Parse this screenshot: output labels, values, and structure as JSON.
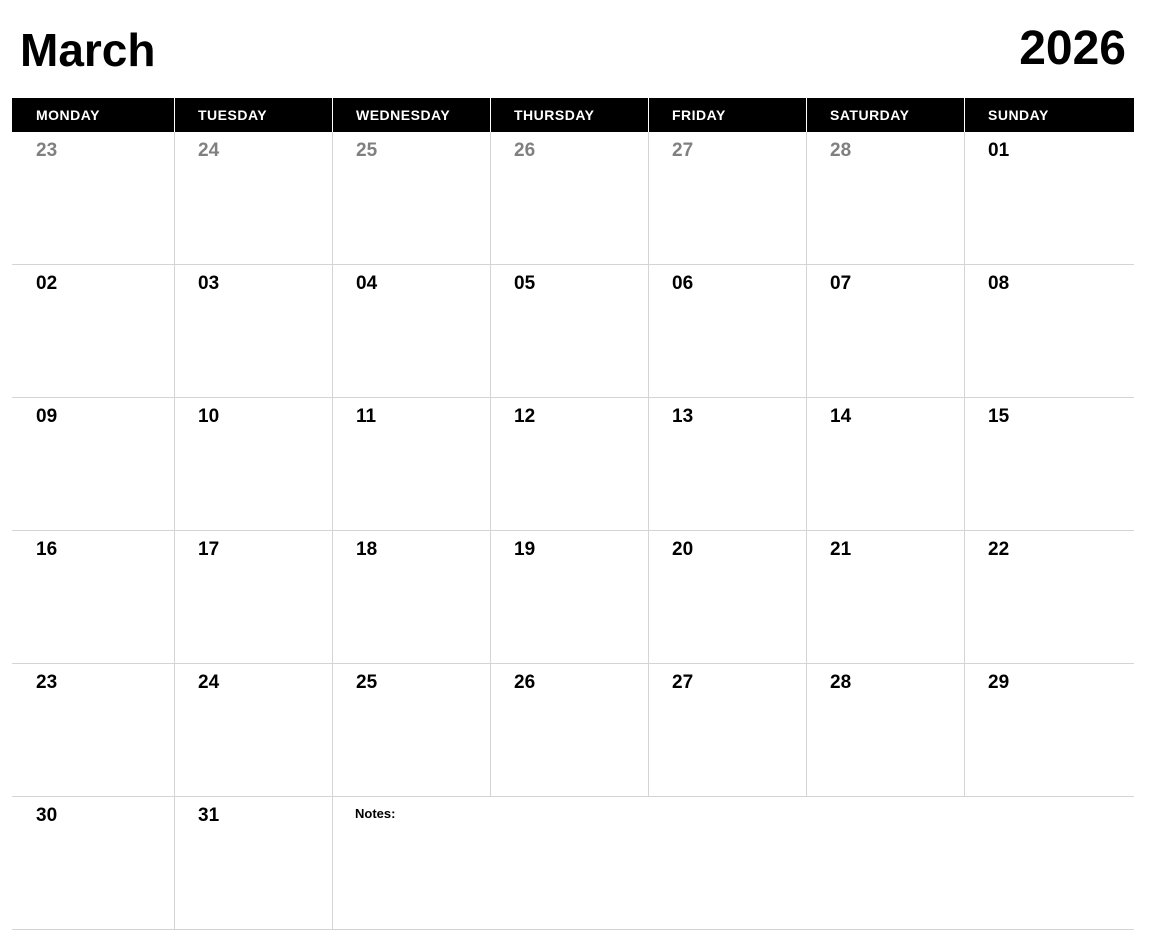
{
  "header": {
    "month": "March",
    "year": "2026"
  },
  "weekdays": [
    "MONDAY",
    "TUESDAY",
    "WEDNESDAY",
    "THURSDAY",
    "FRIDAY",
    "SATURDAY",
    "SUNDAY"
  ],
  "weeks": [
    [
      {
        "label": "23",
        "muted": true
      },
      {
        "label": "24",
        "muted": true
      },
      {
        "label": "25",
        "muted": true
      },
      {
        "label": "26",
        "muted": true
      },
      {
        "label": "27",
        "muted": true
      },
      {
        "label": "28",
        "muted": true
      },
      {
        "label": "01",
        "muted": false
      }
    ],
    [
      {
        "label": "02",
        "muted": false
      },
      {
        "label": "03",
        "muted": false
      },
      {
        "label": "04",
        "muted": false
      },
      {
        "label": "05",
        "muted": false
      },
      {
        "label": "06",
        "muted": false
      },
      {
        "label": "07",
        "muted": false
      },
      {
        "label": "08",
        "muted": false
      }
    ],
    [
      {
        "label": "09",
        "muted": false
      },
      {
        "label": "10",
        "muted": false
      },
      {
        "label": "11",
        "muted": false
      },
      {
        "label": "12",
        "muted": false
      },
      {
        "label": "13",
        "muted": false
      },
      {
        "label": "14",
        "muted": false
      },
      {
        "label": "15",
        "muted": false
      }
    ],
    [
      {
        "label": "16",
        "muted": false
      },
      {
        "label": "17",
        "muted": false
      },
      {
        "label": "18",
        "muted": false
      },
      {
        "label": "19",
        "muted": false
      },
      {
        "label": "20",
        "muted": false
      },
      {
        "label": "21",
        "muted": false
      },
      {
        "label": "22",
        "muted": false
      }
    ],
    [
      {
        "label": "23",
        "muted": false
      },
      {
        "label": "24",
        "muted": false
      },
      {
        "label": "25",
        "muted": false
      },
      {
        "label": "26",
        "muted": false
      },
      {
        "label": "27",
        "muted": false
      },
      {
        "label": "28",
        "muted": false
      },
      {
        "label": "29",
        "muted": false
      }
    ],
    [
      {
        "label": "30",
        "muted": false
      },
      {
        "label": "31",
        "muted": false
      }
    ]
  ],
  "notes": {
    "label": "Notes:"
  },
  "colors": {
    "header_bg": "#000000",
    "header_text": "#ffffff",
    "muted_day": "#808080",
    "grid_line": "#d4d4d4"
  }
}
